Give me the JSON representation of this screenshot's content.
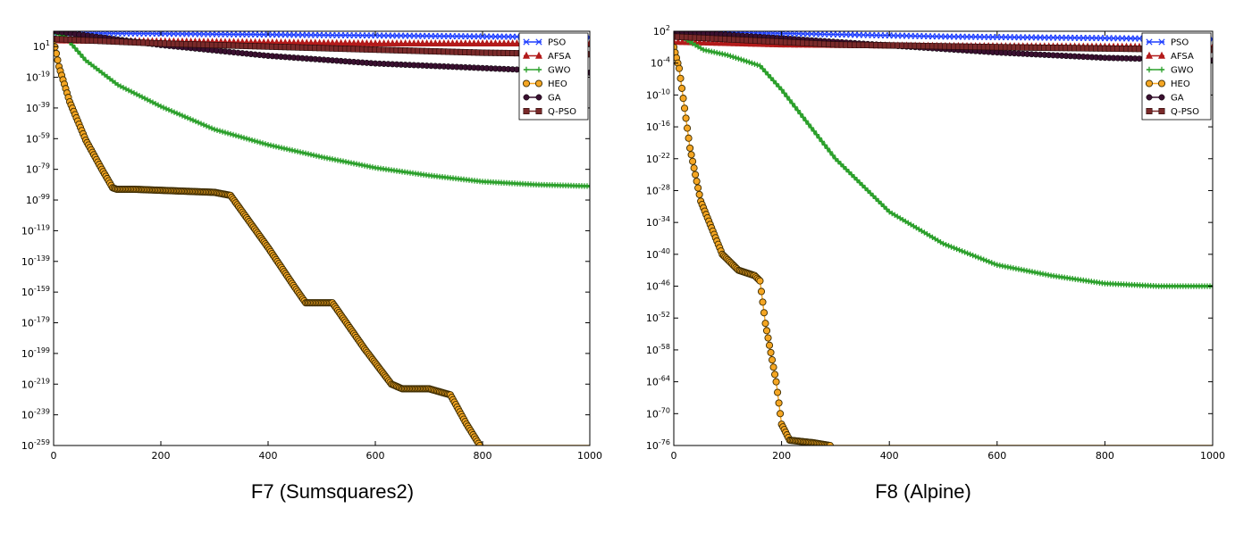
{
  "captions": {
    "left": "F7 (Sumsquares2)",
    "right": "F8 (Alpine)"
  },
  "legend_colors": {
    "PSO": "#1f3fff",
    "AFSA": "#b31b1b",
    "GWO": "#2ca02c",
    "HEO": "#f5a623",
    "GA": "#3a1030",
    "Q-PSO": "#7a2a2a"
  },
  "chart_data": [
    {
      "type": "line",
      "title": "",
      "caption": "F7 (Sumsquares2)",
      "xlabel": "",
      "ylabel": "",
      "yscale": "log",
      "xlim": [
        0,
        1000
      ],
      "ylim_exp": [
        -259,
        11
      ],
      "x_ticks": [
        0,
        200,
        400,
        600,
        800,
        1000
      ],
      "y_tick_exponents": [
        1,
        -19,
        -39,
        -59,
        -79,
        -99,
        -119,
        -139,
        -159,
        -179,
        -199,
        -219,
        -239,
        -259
      ],
      "legend": [
        "PSO",
        "AFSA",
        "GWO",
        "HEO",
        "GA",
        "Q-PSO"
      ],
      "legend_placement": "upper right",
      "series": [
        {
          "name": "PSO",
          "marker": "x",
          "points_exp": [
            [
              0,
              10
            ],
            [
              1000,
              7
            ]
          ]
        },
        {
          "name": "AFSA",
          "marker": "triangle",
          "points_exp": [
            [
              0,
              5
            ],
            [
              300,
              4
            ],
            [
              600,
              3
            ],
            [
              1000,
              3
            ]
          ]
        },
        {
          "name": "GWO",
          "marker": "plus",
          "points_exp": [
            [
              0,
              10
            ],
            [
              20,
              8
            ],
            [
              60,
              -8
            ],
            [
              120,
              -24
            ],
            [
              200,
              -38
            ],
            [
              300,
              -53
            ],
            [
              400,
              -63
            ],
            [
              500,
              -71
            ],
            [
              600,
              -78
            ],
            [
              700,
              -83
            ],
            [
              800,
              -87
            ],
            [
              900,
              -89
            ],
            [
              1000,
              -90
            ]
          ]
        },
        {
          "name": "HEO",
          "marker": "circle",
          "points_exp": [
            [
              0,
              5
            ],
            [
              10,
              -12
            ],
            [
              30,
              -35
            ],
            [
              60,
              -60
            ],
            [
              90,
              -79
            ],
            [
              110,
              -91
            ],
            [
              118,
              -92
            ],
            [
              150,
              -92
            ],
            [
              300,
              -94
            ],
            [
              330,
              -96
            ],
            [
              400,
              -130
            ],
            [
              450,
              -156
            ],
            [
              470,
              -166
            ],
            [
              520,
              -166
            ],
            [
              580,
              -196
            ],
            [
              630,
              -219
            ],
            [
              650,
              -222
            ],
            [
              700,
              -222
            ],
            [
              740,
              -226
            ],
            [
              770,
              -245
            ],
            [
              795,
              -259
            ],
            [
              1000,
              -259
            ]
          ]
        },
        {
          "name": "GA",
          "marker": "star",
          "points_exp": [
            [
              0,
              11
            ],
            [
              200,
              2
            ],
            [
              400,
              -5
            ],
            [
              600,
              -10
            ],
            [
              800,
              -13
            ],
            [
              1000,
              -16
            ]
          ]
        },
        {
          "name": "Q-PSO",
          "marker": "square",
          "points_exp": [
            [
              0,
              6
            ],
            [
              200,
              3
            ],
            [
              500,
              0
            ],
            [
              800,
              -3
            ],
            [
              1000,
              -4
            ]
          ]
        }
      ]
    },
    {
      "type": "line",
      "title": "",
      "caption": "F8 (Alpine)",
      "xlabel": "",
      "ylabel": "",
      "yscale": "log",
      "xlim": [
        0,
        1000
      ],
      "ylim_exp": [
        -76,
        2
      ],
      "x_ticks": [
        0,
        200,
        400,
        600,
        800,
        1000
      ],
      "y_tick_exponents": [
        2,
        -4,
        -10,
        -16,
        -22,
        -28,
        -34,
        -40,
        -46,
        -52,
        -58,
        -64,
        -70,
        -76
      ],
      "legend": [
        "PSO",
        "AFSA",
        "GWO",
        "HEO",
        "GA",
        "Q-PSO"
      ],
      "legend_placement": "upper right",
      "series": [
        {
          "name": "PSO",
          "marker": "x",
          "points_exp": [
            [
              0,
              2
            ],
            [
              500,
              1
            ],
            [
              1000,
              0.5
            ]
          ]
        },
        {
          "name": "AFSA",
          "marker": "triangle",
          "points_exp": [
            [
              0,
              0
            ],
            [
              200,
              -0.5
            ],
            [
              500,
              -0.8
            ],
            [
              1000,
              -1.0
            ]
          ]
        },
        {
          "name": "GWO",
          "marker": "plus",
          "points_exp": [
            [
              0,
              2
            ],
            [
              30,
              0
            ],
            [
              55,
              -1.5
            ],
            [
              100,
              -2.5
            ],
            [
              160,
              -4.5
            ],
            [
              200,
              -9
            ],
            [
              300,
              -22
            ],
            [
              400,
              -32
            ],
            [
              500,
              -38
            ],
            [
              600,
              -42
            ],
            [
              700,
              -44
            ],
            [
              800,
              -45.5
            ],
            [
              900,
              -46
            ],
            [
              1000,
              -46
            ]
          ]
        },
        {
          "name": "HEO",
          "marker": "circle",
          "points_exp": [
            [
              0,
              -1
            ],
            [
              10,
              -5
            ],
            [
              30,
              -20
            ],
            [
              50,
              -30
            ],
            [
              70,
              -35
            ],
            [
              90,
              -40
            ],
            [
              120,
              -43
            ],
            [
              150,
              -44
            ],
            [
              160,
              -45
            ],
            [
              170,
              -53
            ],
            [
              190,
              -64
            ],
            [
              200,
              -72
            ],
            [
              215,
              -75
            ],
            [
              260,
              -75.5
            ],
            [
              290,
              -76
            ],
            [
              1000,
              -76
            ]
          ]
        },
        {
          "name": "GA",
          "marker": "star",
          "points_exp": [
            [
              0,
              2
            ],
            [
              300,
              0
            ],
            [
              600,
              -2
            ],
            [
              800,
              -3
            ],
            [
              1000,
              -3.5
            ]
          ]
        },
        {
          "name": "Q-PSO",
          "marker": "square",
          "points_exp": [
            [
              0,
              1
            ],
            [
              300,
              -0.5
            ],
            [
              600,
              -1
            ],
            [
              1000,
              -1.5
            ]
          ]
        }
      ]
    }
  ]
}
